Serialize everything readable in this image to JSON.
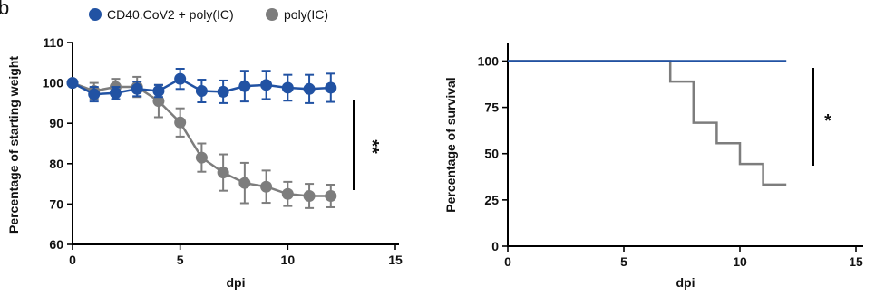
{
  "panel_label": "b",
  "colors": {
    "blue": "#2152a3",
    "gray": "#7d7d7d"
  },
  "chart_data": [
    {
      "type": "line",
      "xlabel": "dpi",
      "ylabel": "Percentage of starting weight",
      "xlim": [
        0,
        15
      ],
      "ylim": [
        60,
        110
      ],
      "xticks": [
        "0",
        "5",
        "10",
        "15"
      ],
      "yticks": [
        "60",
        "70",
        "80",
        "90",
        "100",
        "110"
      ],
      "legend": [
        "CD40.CoV2 + poly(IC)",
        "poly(IC)"
      ],
      "significance": "**",
      "series": [
        {
          "name": "CD40.CoV2 + poly(IC)",
          "color": "#2152a3",
          "x": [
            0,
            1,
            2,
            3,
            4,
            5,
            6,
            7,
            8,
            9,
            10,
            11,
            12
          ],
          "y": [
            100,
            97.2,
            97.5,
            98.5,
            98.0,
            101.0,
            98.0,
            97.8,
            99.2,
            99.5,
            98.8,
            98.5,
            98.8
          ],
          "err": [
            0,
            1.8,
            1.5,
            1.8,
            1.5,
            2.5,
            2.8,
            2.8,
            3.8,
            3.5,
            3.2,
            3.5,
            3.5
          ]
        },
        {
          "name": "poly(IC)",
          "color": "#7d7d7d",
          "x": [
            0,
            1,
            2,
            3,
            4,
            5,
            6,
            7,
            8,
            9,
            10,
            11,
            12
          ],
          "y": [
            100,
            98.0,
            99.0,
            99.0,
            95.5,
            90.2,
            81.5,
            77.8,
            75.2,
            74.3,
            72.5,
            72.0,
            72.0
          ],
          "err": [
            0,
            2.0,
            2.0,
            2.5,
            4.0,
            3.5,
            3.5,
            4.5,
            5.0,
            4.0,
            3.0,
            3.0,
            2.8
          ]
        }
      ]
    },
    {
      "type": "line",
      "xlabel": "dpi",
      "ylabel": "Percentage of survival",
      "xlim": [
        0,
        15
      ],
      "ylim": [
        0,
        110
      ],
      "xticks": [
        "0",
        "5",
        "10",
        "15"
      ],
      "yticks": [
        "0",
        "25",
        "50",
        "75",
        "100"
      ],
      "significance": "*",
      "series": [
        {
          "name": "CD40.CoV2 + poly(IC)",
          "color": "#2152a3",
          "step": true,
          "x": [
            0,
            12
          ],
          "y": [
            100,
            100
          ]
        },
        {
          "name": "poly(IC)",
          "color": "#7d7d7d",
          "step": true,
          "x": [
            0,
            7,
            8,
            9,
            10,
            11,
            12
          ],
          "y": [
            100,
            88.9,
            66.7,
            55.6,
            44.4,
            33.3,
            33.3
          ]
        }
      ]
    }
  ]
}
